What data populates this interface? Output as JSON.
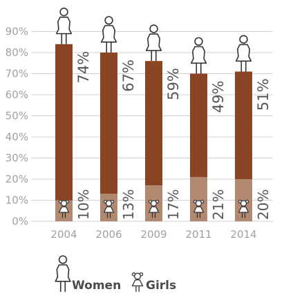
{
  "chart_data": {
    "type": "bar",
    "categories": [
      "2004",
      "2006",
      "2009",
      "2011",
      "2014"
    ],
    "series": [
      {
        "name": "Women",
        "values": [
          84,
          80,
          76,
          70,
          71
        ],
        "labels": [
          "74%",
          "67%",
          "59%",
          "49%",
          "51%"
        ]
      },
      {
        "name": "Girls",
        "values": [
          10,
          13,
          17,
          21,
          20
        ],
        "labels": [
          "10%",
          "13%",
          "17%",
          "21%",
          "20%"
        ]
      }
    ],
    "y_ticks": [
      "0%",
      "10%",
      "20%",
      "30%",
      "40%",
      "50%",
      "60%",
      "70%",
      "80%",
      "90%"
    ],
    "ylim": [
      0,
      90
    ],
    "grid": true,
    "legend_position": "bottom-left"
  },
  "colors": {
    "women": "#8b4424",
    "girls": "#b18970",
    "grid": "#d0d0d0",
    "tick_text": "#a0a0a0",
    "label_text": "#555555"
  },
  "legend": {
    "women_label": "Women",
    "girls_label": "Girls",
    "women_icon": "woman-icon",
    "girls_icon": "girl-icon"
  }
}
